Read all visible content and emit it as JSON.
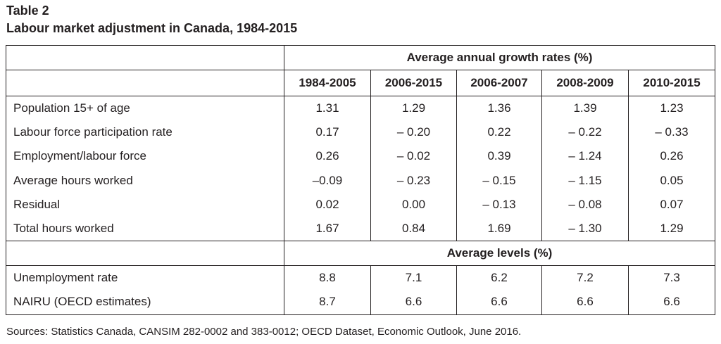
{
  "table_number": "Table 2",
  "title": "Labour market adjustment in Canada, 1984-2015",
  "group_headers": {
    "growth": "Average annual growth rates (%)",
    "levels": "Average levels (%)"
  },
  "columns": [
    "1984-2005",
    "2006-2015",
    "2006-2007",
    "2008-2009",
    "2010-2015"
  ],
  "growth_rows": [
    {
      "label": "Population 15+ of age",
      "values": [
        "1.31",
        "1.29",
        "1.36",
        "1.39",
        "1.23"
      ]
    },
    {
      "label": "Labour force participation rate",
      "values": [
        "0.17",
        "– 0.20",
        "0.22",
        "– 0.22",
        "– 0.33"
      ]
    },
    {
      "label": "Employment/labour force",
      "values": [
        "0.26",
        "– 0.02",
        "0.39",
        "– 1.24",
        "0.26"
      ]
    },
    {
      "label": "Average hours worked",
      "values": [
        "–0.09",
        "– 0.23",
        "– 0.15",
        "– 1.15",
        "0.05"
      ]
    },
    {
      "label": "Residual",
      "values": [
        "0.02",
        "0.00",
        "– 0.13",
        "– 0.08",
        "0.07"
      ]
    },
    {
      "label": "Total hours worked",
      "values": [
        "1.67",
        "0.84",
        "1.69",
        "– 1.30",
        "1.29"
      ]
    }
  ],
  "level_rows": [
    {
      "label": "Unemployment rate",
      "values": [
        "8.8",
        "7.1",
        "6.2",
        "7.2",
        "7.3"
      ]
    },
    {
      "label": "NAIRU (OECD estimates)",
      "values": [
        "8.7",
        "6.6",
        "6.6",
        "6.6",
        "6.6"
      ]
    }
  ],
  "source": "Sources: Statistics Canada, CANSIM 282-0002 and 383-0012; OECD Dataset, Economic Outlook, June 2016."
}
